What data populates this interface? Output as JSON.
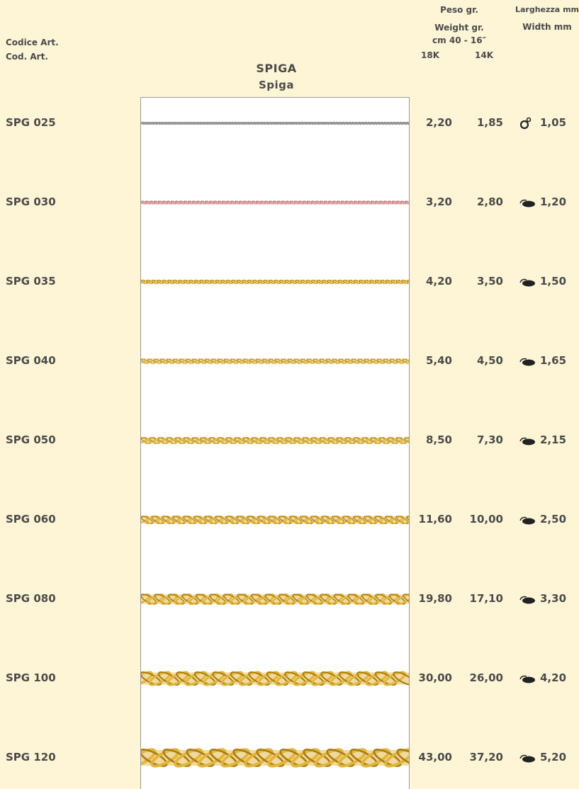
{
  "header": {
    "code_label": "Codice Art.",
    "code_label_short": "Cod. Art.",
    "title": "SPIGA",
    "subtitle": "Spiga",
    "weight_label": "Peso gr.",
    "weight_label_en": "Weight gr.",
    "length": "cm 40 - 16″",
    "col_18k": "18K",
    "col_14k": "14K",
    "width_label": "Larghezza mm",
    "width_label_en": "Width mm"
  },
  "table": {
    "rows": [
      [
        "SPG 025",
        "2,20",
        "1,85",
        "1,05"
      ],
      [
        "SPG 030",
        "3,20",
        "2,80",
        "1,20"
      ],
      [
        "SPG 035",
        "4,20",
        "3,50",
        "1,50"
      ],
      [
        "SPG 040",
        "5,40",
        "4,50",
        "1,65"
      ],
      [
        "SPG 050",
        "8,50",
        "7,30",
        "2,15"
      ],
      [
        "SPG 060",
        "11,60",
        "10,00",
        "2,50"
      ],
      [
        "SPG 080",
        "19,80",
        "17,10",
        "3,30"
      ],
      [
        "SPG 100",
        "30,00",
        "26,00",
        "4,20"
      ],
      [
        "SPG 120",
        "43,00",
        "37,20",
        "5,20"
      ]
    ]
  }
}
